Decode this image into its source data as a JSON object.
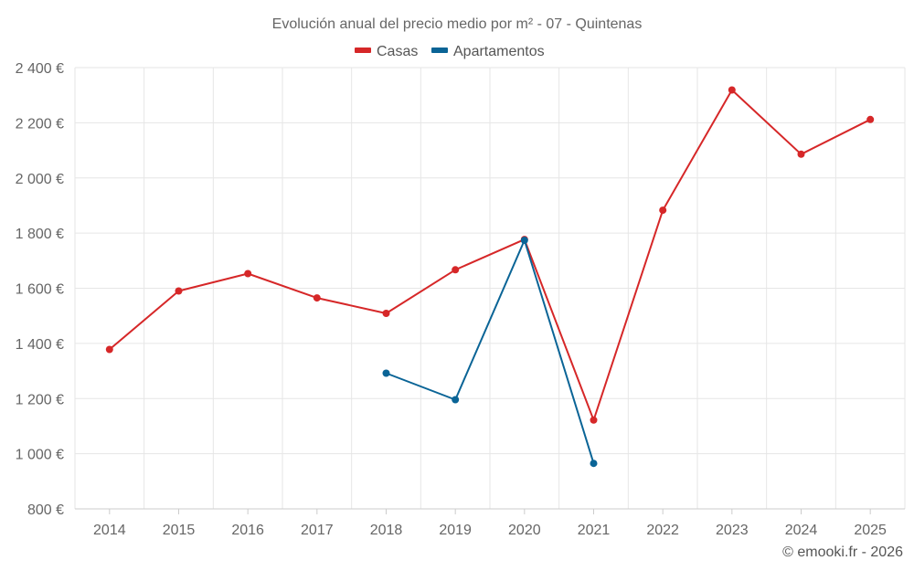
{
  "chart_data": {
    "type": "line",
    "title": "Evolución anual del precio medio por m² - 07 - Quintenas",
    "categories": [
      "2014",
      "2015",
      "2016",
      "2017",
      "2018",
      "2019",
      "2020",
      "2021",
      "2022",
      "2023",
      "2024",
      "2025"
    ],
    "ylim": [
      800,
      2400
    ],
    "yticks": [
      800,
      1000,
      1200,
      1400,
      1600,
      1800,
      2000,
      2200,
      2400
    ],
    "ytick_labels": [
      "800 €",
      "1 000 €",
      "1 200 €",
      "1 400 €",
      "1 600 €",
      "1 800 €",
      "2 000 €",
      "2 200 €",
      "2 400 €"
    ],
    "grid": true,
    "legend_position": "top-center",
    "series": [
      {
        "name": "Casas",
        "color": "#d62728",
        "values": [
          1378,
          1590,
          1653,
          1565,
          1509,
          1667,
          1777,
          1122,
          1883,
          2319,
          2086,
          2212
        ]
      },
      {
        "name": "Apartamentos",
        "color": "#0a6496",
        "values": [
          null,
          null,
          null,
          null,
          1292,
          1196,
          1774,
          965,
          null,
          null,
          null,
          null
        ]
      }
    ],
    "credit": "© emooki.fr - 2026"
  }
}
